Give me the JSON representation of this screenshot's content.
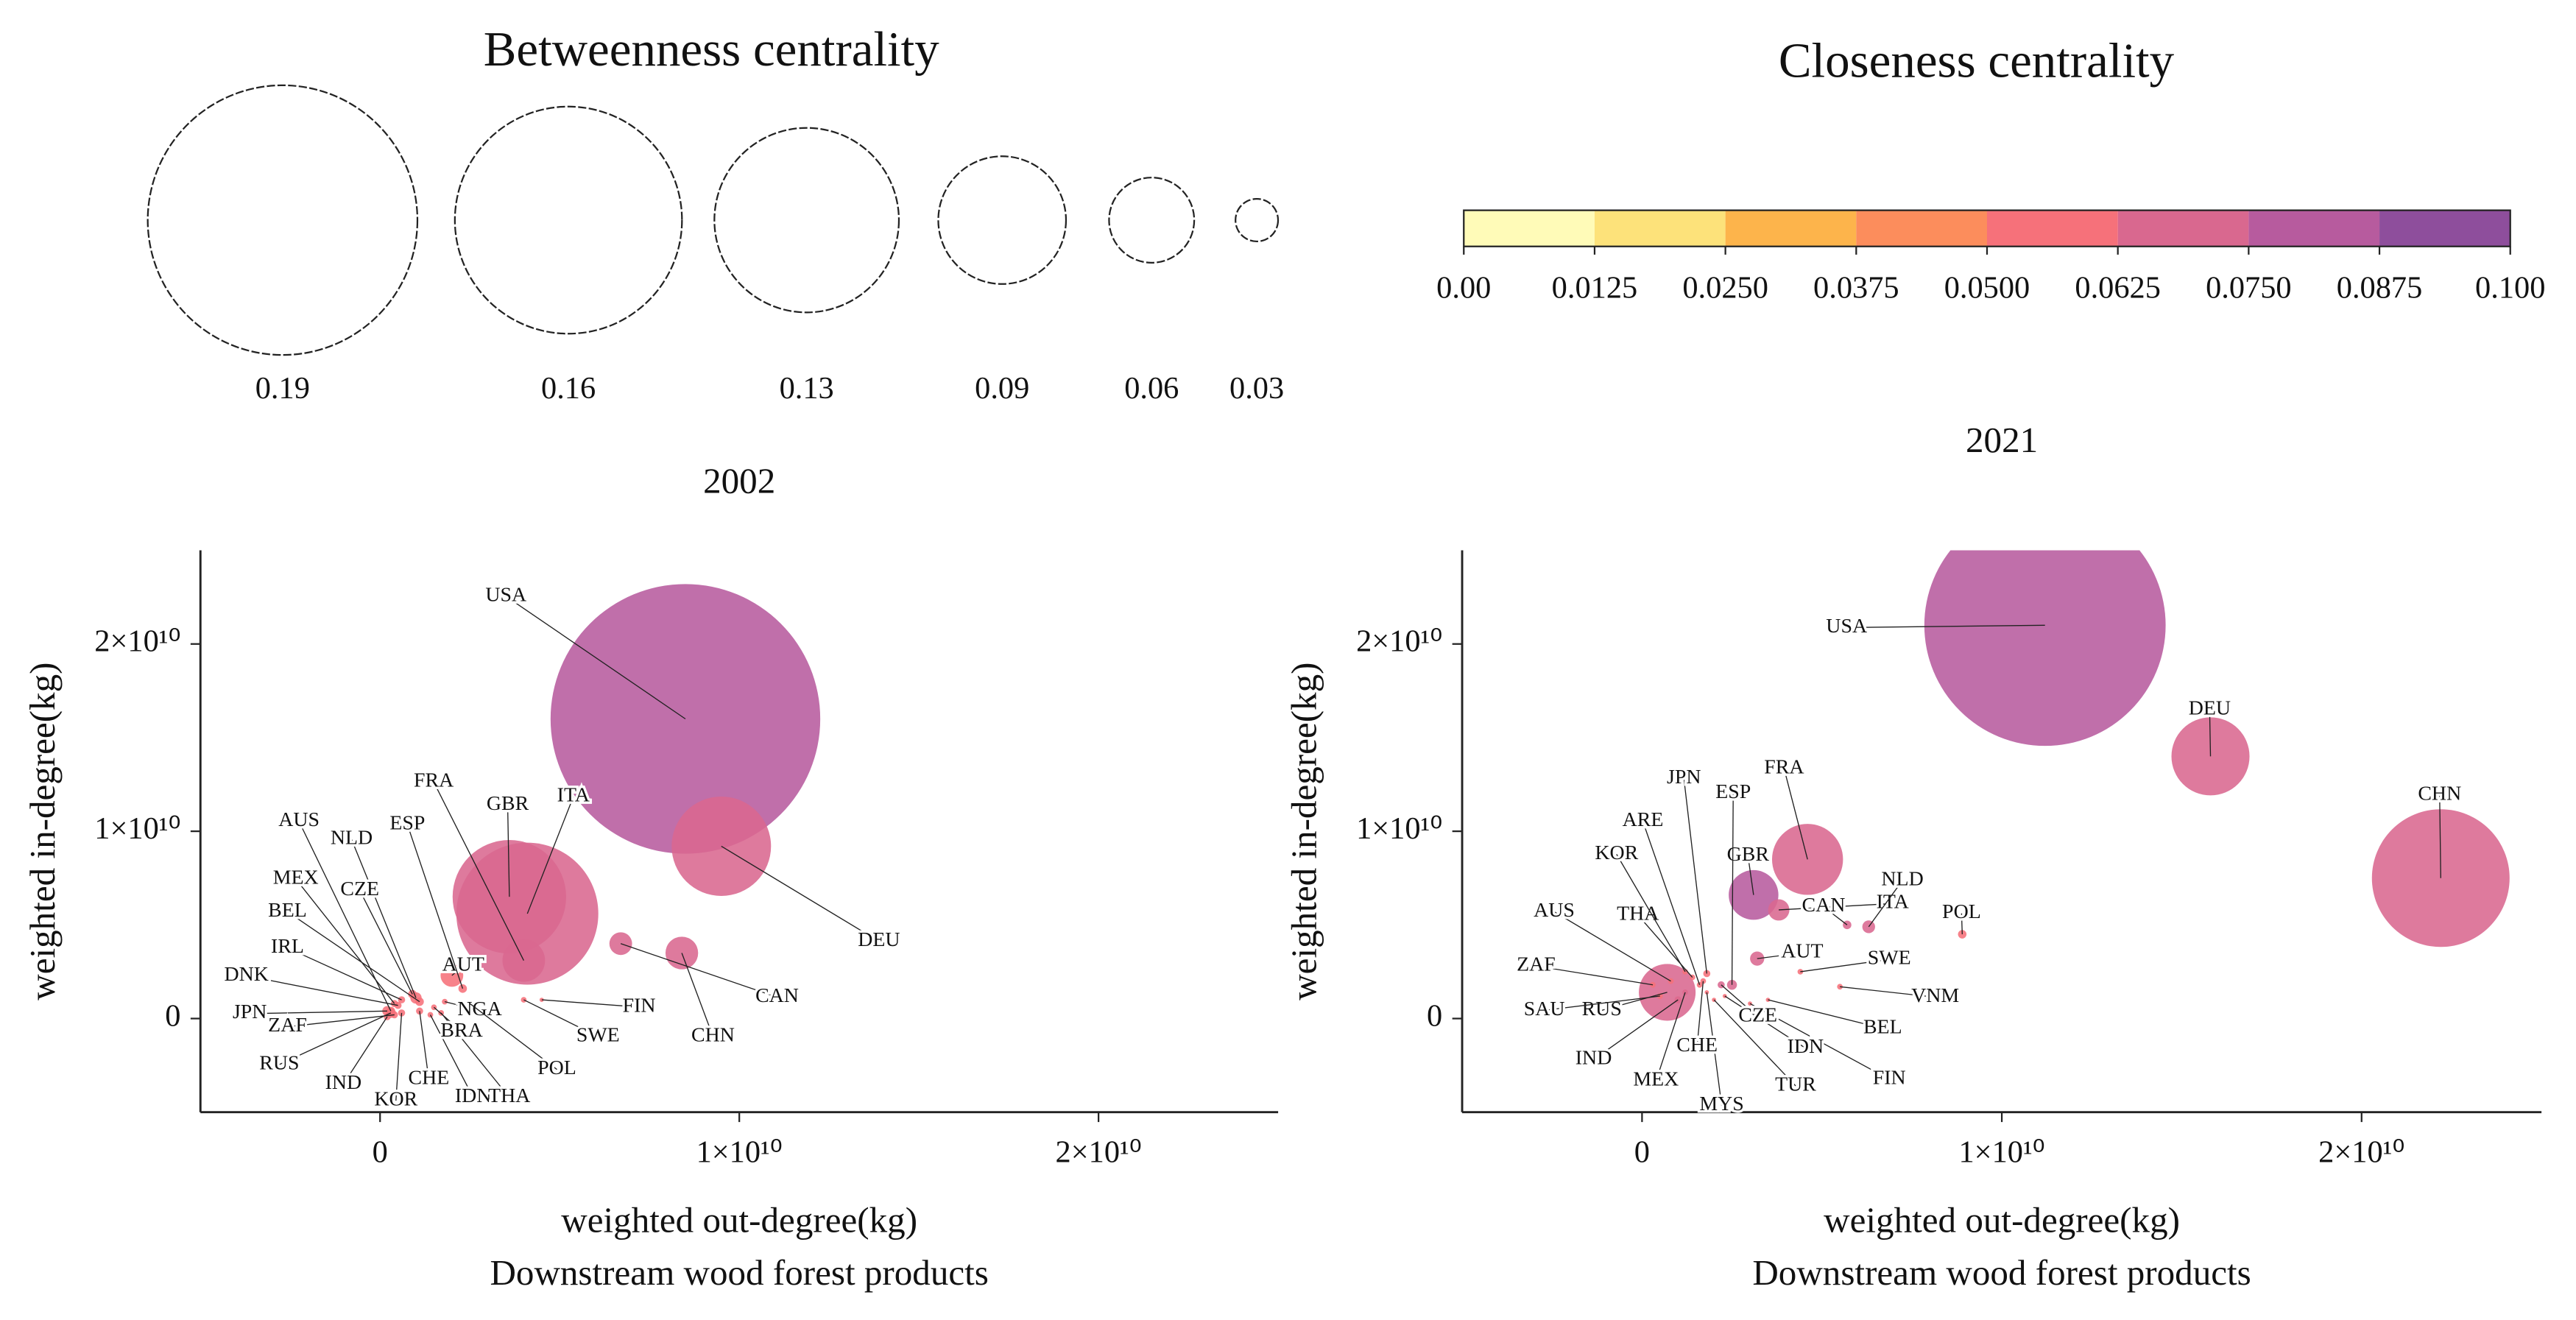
{
  "size_legend": {
    "title": "Betweenness centrality",
    "values": [
      0.19,
      0.16,
      0.13,
      0.09,
      0.06,
      0.03
    ]
  },
  "color_legend": {
    "title": "Closeness centrality",
    "ticks": [
      {
        "value": 0,
        "label": "0.00"
      },
      0.0125,
      {
        "value": 0.025,
        "label": "0.0250"
      },
      0.0375,
      {
        "value": 0.05,
        "label": "0.0500"
      },
      0.0625,
      {
        "value": 0.075,
        "label": "0.0750"
      },
      0.0875,
      {
        "value": 0.1,
        "label": "0.100"
      }
    ],
    "colors": [
      "#fffbb8",
      "#fde27a",
      "#fdb44b",
      "#fc8d5c",
      "#f6717a",
      "#d9688f",
      "#b75b9e",
      "#8e4e9c"
    ]
  },
  "chart_data": [
    {
      "type": "bubble",
      "title": "2002",
      "xlabel": "weighted out-degree(kg)",
      "subtitle": "Downstream wood forest products",
      "ylabel": "weighted in-degree(kg)",
      "xlim": [
        -5000000000.0,
        25000000000.0
      ],
      "ylim": [
        -5000000000.0,
        25000000000.0
      ],
      "xticks": [
        0,
        {
          "value": 10000000000.0,
          "label": "1×10¹⁰"
        },
        {
          "value": 20000000000.0,
          "label": "2×10¹⁰"
        }
      ],
      "yticks": [
        0,
        {
          "value": 10000000000.0,
          "label": "1×10¹⁰"
        },
        {
          "value": 20000000000.0,
          "label": "2×10¹⁰"
        }
      ],
      "labels": [
        "USA",
        "DEU",
        "GBR",
        "ITA",
        "CHN",
        "CAN",
        "FRA",
        "AUT",
        "ESP",
        "NLD",
        "AUS",
        "MEX",
        "CZE",
        "BEL",
        "IRL",
        "DNK",
        "JPN",
        "ZAF",
        "RUS",
        "IND",
        "KOR",
        "CHE",
        "IDN",
        "THA",
        "BRA",
        "NGA",
        "POL",
        "SWE",
        "FIN"
      ],
      "x": [
        8500000000.0,
        9500000000.0,
        3600000000.0,
        4100000000.0,
        8400000000.0,
        6700000000.0,
        4000000000.0,
        2000000000.0,
        2300000000.0,
        1000000000.0,
        300000000.0,
        400000000.0,
        900000000.0,
        1100000000.0,
        600000000.0,
        500000000.0,
        200000000.0,
        400000000.0,
        300000000.0,
        200000000.0,
        600000000.0,
        1100000000.0,
        1400000000.0,
        1700000000.0,
        1500000000.0,
        1800000000.0,
        2500000000.0,
        4000000000.0,
        4500000000.0
      ],
      "values": [
        16000000000.0,
        9200000000.0,
        6500000000.0,
        5600000000.0,
        3500000000.0,
        4000000000.0,
        3100000000.0,
        2300000000.0,
        1600000000.0,
        1100000000.0,
        400000000.0,
        800000000.0,
        1300000000.0,
        900000000.0,
        1000000000.0,
        700000000.0,
        400000000.0,
        200000000.0,
        300000000.0,
        100000000.0,
        300000000.0,
        400000000.0,
        200000000.0,
        300000000.0,
        600000000.0,
        900000000.0,
        800000000.0,
        1000000000.0,
        1000000000.0
      ],
      "sizes": [
        0.19,
        0.07,
        0.08,
        0.1,
        0.023,
        0.016,
        0.03,
        0.016,
        0.006,
        0.008,
        0.006,
        0.005,
        0.006,
        0.006,
        0.005,
        0.005,
        0.007,
        0.005,
        0.007,
        0.005,
        0.005,
        0.005,
        0.004,
        0.004,
        0.004,
        0.004,
        0.005,
        0.004,
        0.003
      ],
      "closeness": [
        0.08,
        0.07,
        0.07,
        0.07,
        0.065,
        0.065,
        0.07,
        0.06,
        0.055,
        0.06,
        0.055,
        0.055,
        0.055,
        0.055,
        0.055,
        0.055,
        0.055,
        0.055,
        0.06,
        0.055,
        0.055,
        0.055,
        0.055,
        0.055,
        0.055,
        0.055,
        0.055,
        0.06,
        0.06
      ]
    },
    {
      "type": "bubble",
      "title": "2021",
      "xlabel": "weighted out-degree(kg)",
      "subtitle": "Downstream wood forest products",
      "ylabel": "weighted in-degree(kg)",
      "xlim": [
        -5000000000.0,
        25000000000.0
      ],
      "ylim": [
        -5000000000.0,
        25000000000.0
      ],
      "xticks": [
        0,
        {
          "value": 10000000000.0,
          "label": "1×10¹⁰"
        },
        {
          "value": 20000000000.0,
          "label": "2×10¹⁰"
        }
      ],
      "yticks": [
        0,
        {
          "value": 10000000000.0,
          "label": "1×10¹⁰"
        },
        {
          "value": 20000000000.0,
          "label": "2×10¹⁰"
        }
      ],
      "labels": [
        "USA",
        "DEU",
        "CHN",
        "FRA",
        "GBR",
        "ITA",
        "CAN",
        "NLD",
        "POL",
        "AUT",
        "SWE",
        "VNM",
        "BEL",
        "FIN",
        "IDN",
        "TUR",
        "CZE",
        "MYS",
        "CHE",
        "MEX",
        "IND",
        "RUS",
        "SAU",
        "ZAF",
        "AUS",
        "THA",
        "KOR",
        "ARE",
        "JPN",
        "ESP"
      ],
      "x": [
        11200000000.0,
        15800000000.0,
        22200000000.0,
        4600000000.0,
        3100000000.0,
        3800000000.0,
        5700000000.0,
        6300000000.0,
        8900000000.0,
        3200000000.0,
        4400000000.0,
        5500000000.0,
        3500000000.0,
        3000000000.0,
        2300000000.0,
        2000000000.0,
        2200000000.0,
        1800000000.0,
        1700000000.0,
        1200000000.0,
        1000000000.0,
        700000000.0,
        500000000.0,
        300000000.0,
        800000000.0,
        1400000000.0,
        1200000000.0,
        1600000000.0,
        1800000000.0,
        2500000000.0
      ],
      "values": [
        21000000000.0,
        14000000000.0,
        7500000000.0,
        8500000000.0,
        6600000000.0,
        5800000000.0,
        5000000000.0,
        4900000000.0,
        4500000000.0,
        3200000000.0,
        2500000000.0,
        1700000000.0,
        1000000000.0,
        800000000.0,
        1200000000.0,
        1000000000.0,
        1800000000.0,
        1400000000.0,
        2000000000.0,
        1400000000.0,
        1000000000.0,
        1400000000.0,
        1200000000.0,
        1800000000.0,
        2000000000.0,
        2200000000.0,
        2500000000.0,
        1800000000.0,
        2400000000.0,
        1800000000.0
      ],
      "sizes": [
        0.17,
        0.055,
        0.097,
        0.05,
        0.035,
        0.015,
        0.006,
        0.009,
        0.006,
        0.01,
        0.004,
        0.004,
        0.003,
        0.003,
        0.003,
        0.003,
        0.005,
        0.003,
        0.004,
        0.004,
        0.005,
        0.04,
        0.004,
        0.004,
        0.004,
        0.004,
        0.004,
        0.004,
        0.005,
        0.007
      ],
      "closeness": [
        0.08,
        0.07,
        0.07,
        0.07,
        0.085,
        0.07,
        0.065,
        0.065,
        0.06,
        0.065,
        0.06,
        0.06,
        0.06,
        0.06,
        0.06,
        0.06,
        0.065,
        0.06,
        0.06,
        0.06,
        0.06,
        0.07,
        0.06,
        0.06,
        0.06,
        0.06,
        0.06,
        0.06,
        0.06,
        0.065
      ]
    }
  ]
}
